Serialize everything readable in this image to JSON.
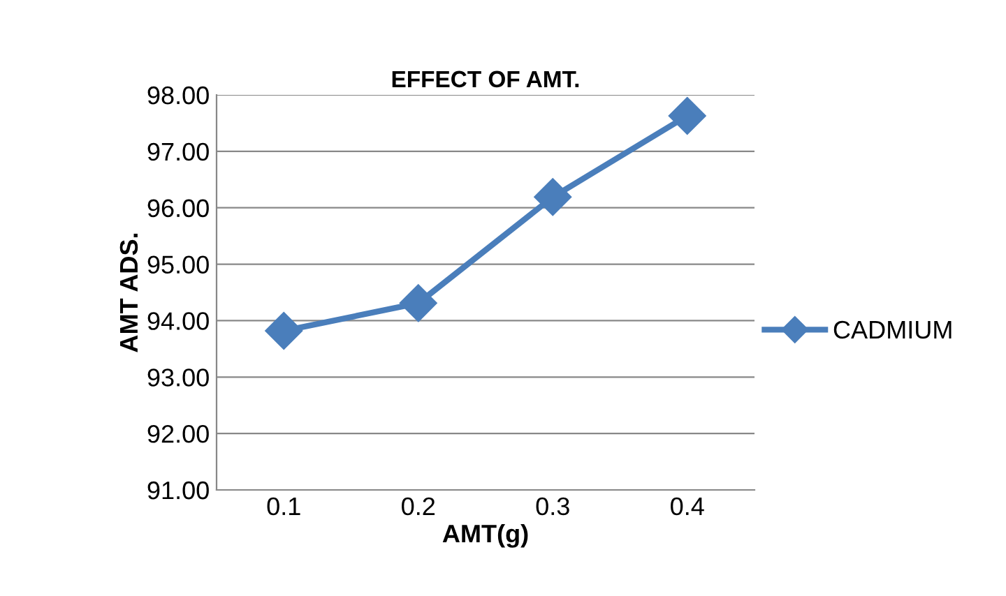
{
  "chart_data": {
    "type": "line",
    "title": "EFFECT OF AMT.",
    "xlabel": "AMT(g)",
    "ylabel": "AMT ADS.",
    "categories": [
      "0.1",
      "0.2",
      "0.3",
      "0.4"
    ],
    "series": [
      {
        "name": "CADMIUM",
        "color": "#4a7ebb",
        "values": [
          93.82,
          94.31,
          96.19,
          97.63
        ]
      }
    ],
    "ylim": [
      91,
      98
    ],
    "yticks": [
      {
        "value": 91,
        "label": "91.00"
      },
      {
        "value": 92,
        "label": "92.00"
      },
      {
        "value": 93,
        "label": "93.00"
      },
      {
        "value": 94,
        "label": "94.00"
      },
      {
        "value": 95,
        "label": "95.00"
      },
      {
        "value": 96,
        "label": "96.00"
      },
      {
        "value": 97,
        "label": "97.00"
      },
      {
        "value": 98,
        "label": "98.00"
      }
    ],
    "grid": "y",
    "legend": "right",
    "marker": "diamond",
    "line_style": "solid"
  }
}
